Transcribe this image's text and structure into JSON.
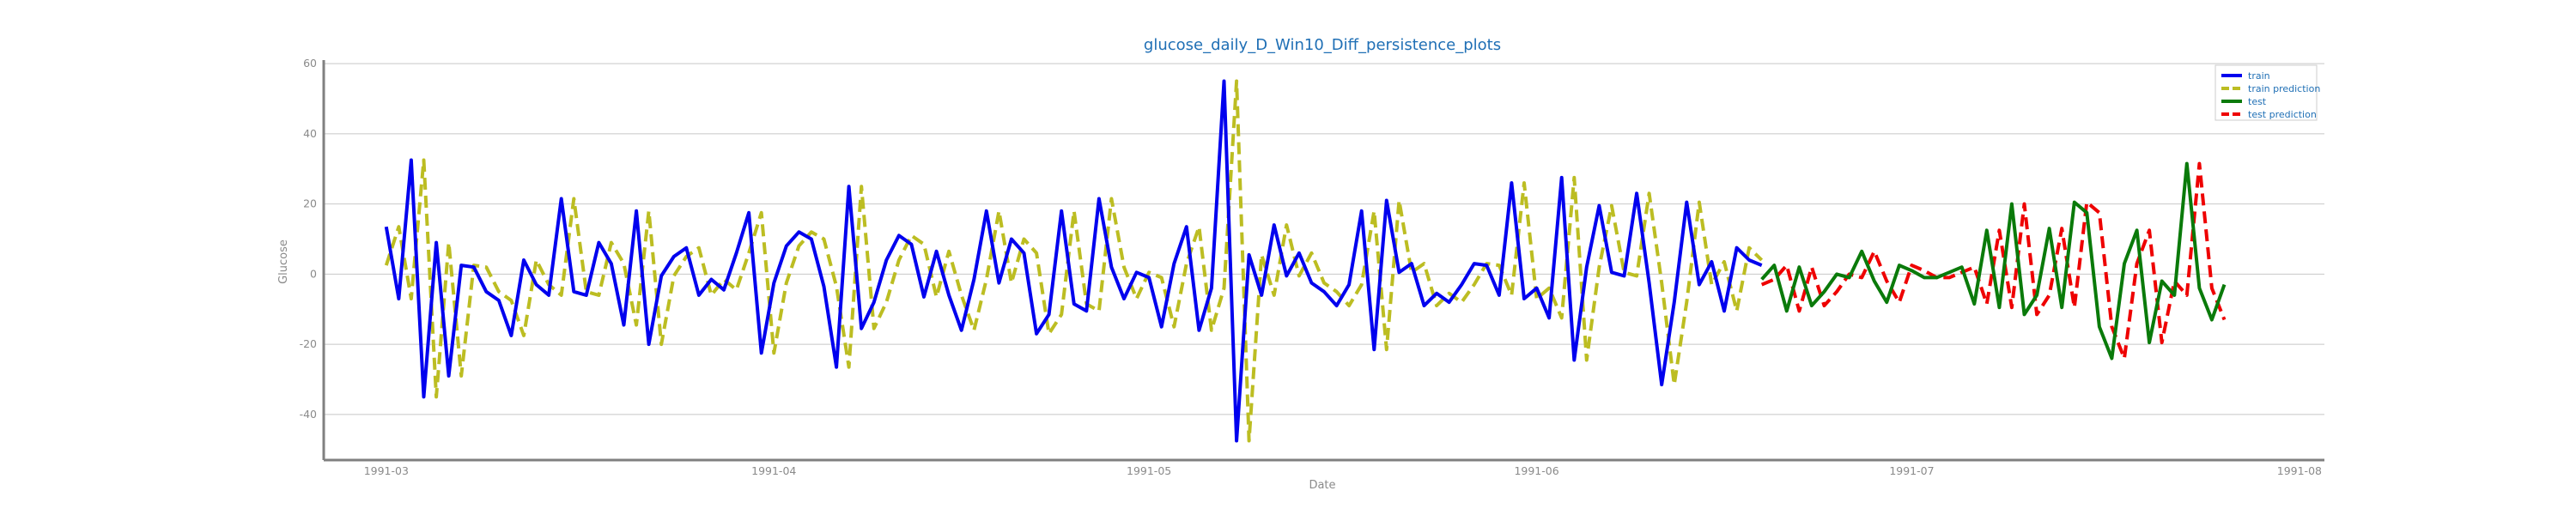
{
  "chart_data": {
    "type": "line",
    "title": "glucose_daily_D_Win10_Diff_persistence_plots",
    "xlabel": "Date",
    "ylabel": "Glucose",
    "xlim": [
      "1991-02-24",
      "1991-08-03"
    ],
    "ylim": [
      -53,
      61
    ],
    "x_ticks": [
      "1991-03",
      "1991-04",
      "1991-05",
      "1991-06",
      "1991-07",
      "1991-08"
    ],
    "y_ticks": [
      -40,
      -20,
      0,
      20,
      40,
      60
    ],
    "grid": true,
    "legend_position": "top-right",
    "colors": {
      "train": "#0000ee",
      "train prediction": "#bcbd22",
      "test": "#0a7a0a",
      "test prediction": "#ee0000"
    },
    "series": [
      {
        "name": "train",
        "start": "1991-03-01",
        "values": [
          13.5,
          -7,
          32.5,
          -35,
          9,
          -29,
          2.5,
          2,
          -5,
          -7.5,
          -17.5,
          4,
          -3,
          -6,
          21.5,
          -5,
          -6,
          9,
          3,
          -14.5,
          18,
          -20,
          -0.5,
          5,
          7.5,
          -6,
          -1.5,
          -4.5,
          6,
          17.5,
          -22.5,
          -2.5,
          8,
          12,
          10,
          -3.5,
          -26.5,
          25,
          -15.5,
          -8,
          4,
          11,
          8.5,
          -6.5,
          6.5,
          -6,
          -16,
          -1.5,
          18,
          -2.5,
          10,
          6,
          -17,
          -11.5,
          18,
          -8.5,
          -10.5,
          21.5,
          2,
          -7,
          0.5,
          -1,
          -15,
          3,
          13.5,
          -16,
          -4,
          55,
          -47.5,
          5.5,
          -6,
          14,
          -0.5,
          6,
          -2.5,
          -5,
          -9,
          -3,
          18,
          -21.5,
          21,
          0.5,
          3,
          -9,
          -5.5,
          -8,
          -3,
          3,
          2.5,
          -6,
          26,
          -7,
          -4,
          -12.5,
          27.5,
          -24.5,
          2,
          19.5,
          0.5,
          -0.5,
          23,
          -2.5,
          -31.5,
          -8,
          20.5,
          -3,
          3.5,
          -10.5,
          7.5,
          4,
          2.5
        ]
      },
      {
        "name": "train prediction",
        "start": "1991-03-01",
        "values": [
          2.5,
          13.5,
          -7,
          32.5,
          -35,
          9,
          -29,
          2.5,
          2,
          -5,
          -7.5,
          -17.5,
          4,
          -3,
          -6,
          21.5,
          -5,
          -6,
          9,
          3,
          -14.5,
          18,
          -20,
          -0.5,
          5,
          7.5,
          -6,
          -1.5,
          -4.5,
          6,
          17.5,
          -22.5,
          -2.5,
          8,
          12,
          10,
          -3.5,
          -26.5,
          25,
          -15.5,
          -8,
          4,
          11,
          8.5,
          -6.5,
          6.5,
          -6,
          -16,
          -1.5,
          18,
          -2.5,
          10,
          6,
          -17,
          -11.5,
          18,
          -8.5,
          -10.5,
          21.5,
          2,
          -7,
          0.5,
          -1,
          -15,
          3,
          13.5,
          -16,
          -4,
          55,
          -47.5,
          5.5,
          -6,
          14,
          -0.5,
          6,
          -2.5,
          -5,
          -9,
          -3,
          18,
          -21.5,
          21,
          0.5,
          3,
          -9,
          -5.5,
          -8,
          -3,
          3,
          2.5,
          -6,
          26,
          -7,
          -4,
          -12.5,
          27.5,
          -24.5,
          2,
          19.5,
          0.5,
          -0.5,
          23,
          -2.5,
          -31.5,
          -8,
          20.5,
          -3,
          3.5,
          -10.5,
          7.5,
          4
        ]
      },
      {
        "name": "test",
        "start": "1991-06-19",
        "values": [
          -1.5,
          2.5,
          -10.5,
          2,
          -9,
          -5,
          0,
          -1,
          6.5,
          -2,
          -8,
          2.5,
          1,
          -1,
          -1,
          0.5,
          2,
          -8.5,
          12.5,
          -9.5,
          20,
          -11.5,
          -6,
          13,
          -9.5,
          20.5,
          17.5,
          -15,
          -24,
          3,
          12.5,
          -19.5,
          -2,
          -6,
          31.5,
          -4,
          -13,
          -3
        ]
      },
      {
        "name": "test prediction",
        "start": "1991-06-19",
        "values": [
          -3,
          -1.5,
          2.5,
          -10.5,
          2,
          -9,
          -5,
          0,
          -1,
          6.5,
          -2,
          -8,
          2.5,
          1,
          -1,
          -1,
          0.5,
          2,
          -8.5,
          12.5,
          -9.5,
          20,
          -11.5,
          -6,
          13,
          -9.5,
          20.5,
          17.5,
          -15,
          -24,
          3,
          12.5,
          -19.5,
          -2,
          -6,
          31.5,
          -4,
          -13
        ]
      }
    ]
  }
}
